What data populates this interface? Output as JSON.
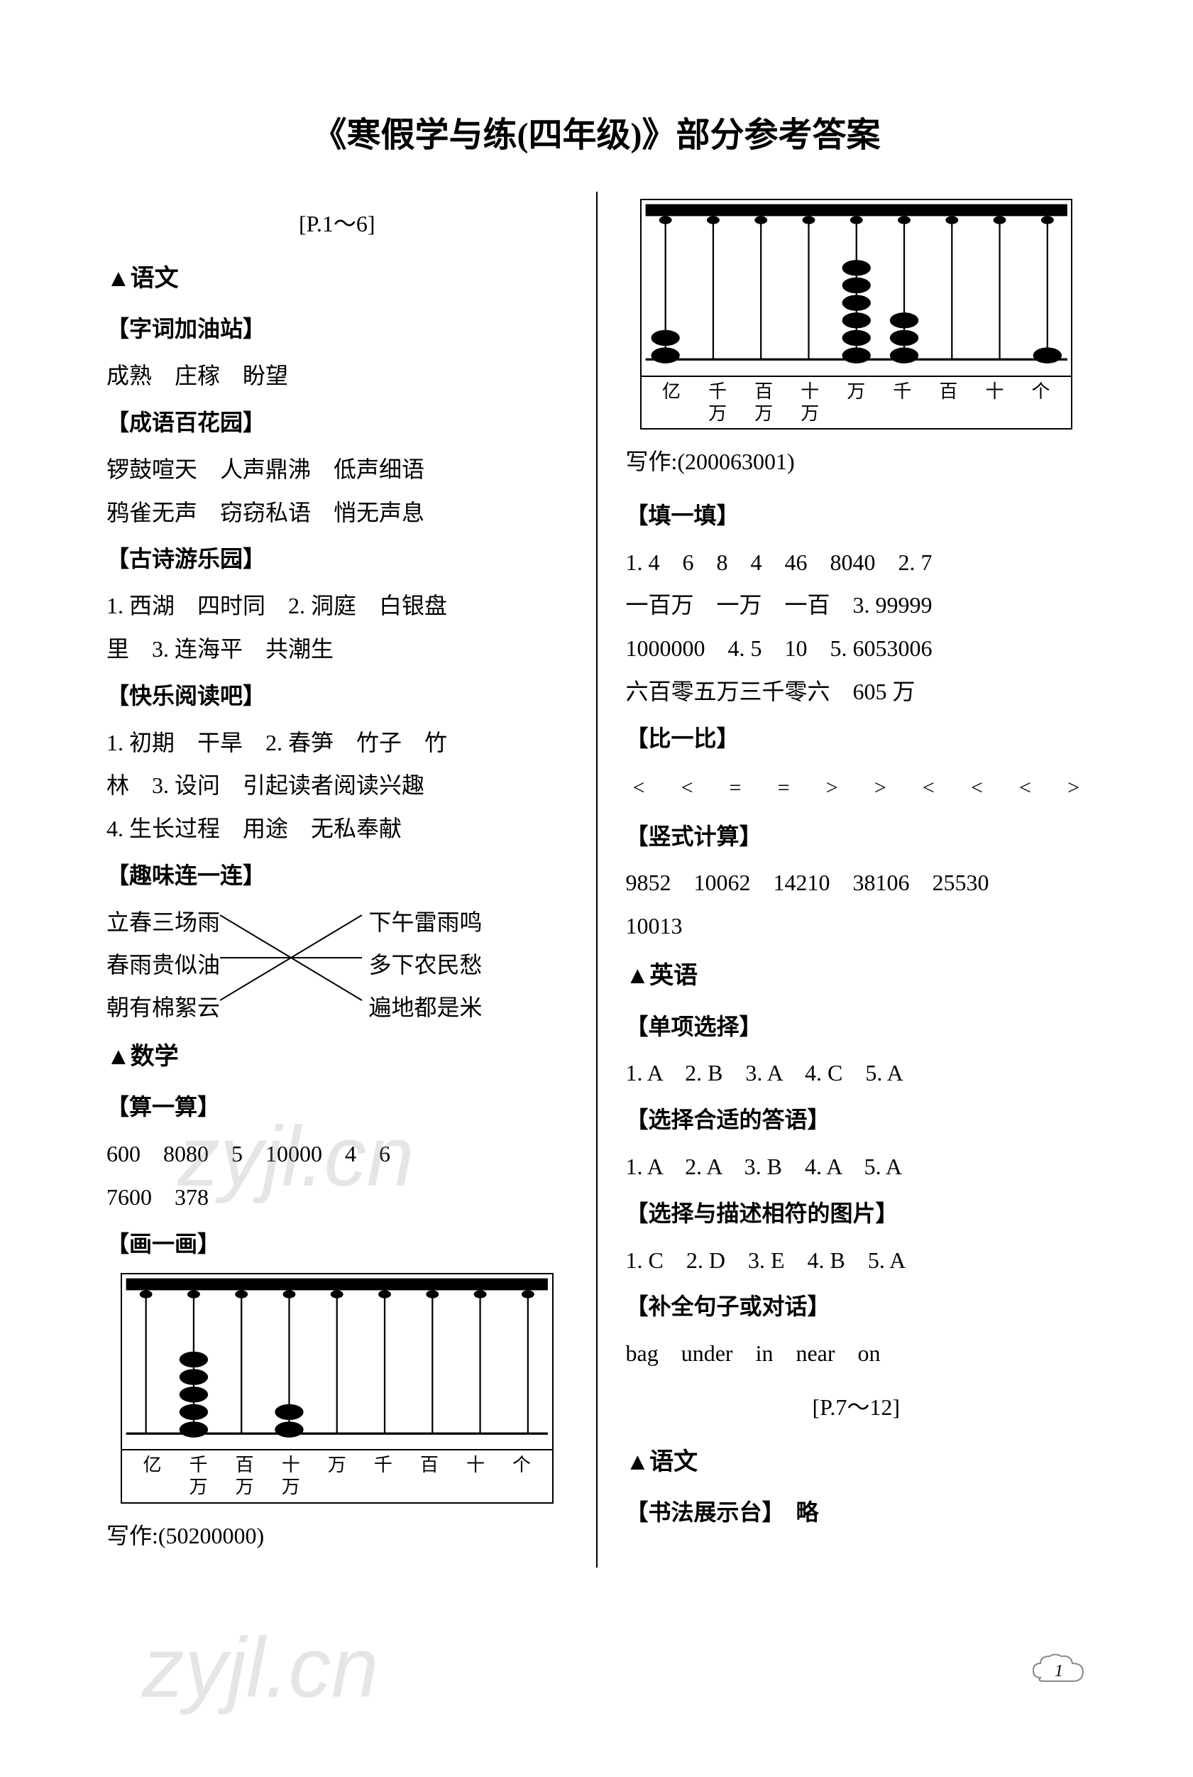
{
  "title": "《寒假学与练(四年级)》部分参考答案",
  "page_range1": "[P.1～6]",
  "page_range2": "[P.7～12]",
  "subject_chinese": "▲语文",
  "subject_math": "▲数学",
  "subject_english": "▲英语",
  "left": {
    "sec1_header": "【字词加油站】",
    "sec1_text": "成熟　庄稼　盼望",
    "sec2_header": "【成语百花园】",
    "sec2_text1": "锣鼓喧天　人声鼎沸　低声细语",
    "sec2_text2": "鸦雀无声　窃窃私语　悄无声息",
    "sec3_header": "【古诗游乐园】",
    "sec3_text1": "1. 西湖　四时同　2. 洞庭　白银盘",
    "sec3_text2": "里　3. 连海平　共潮生",
    "sec4_header": "【快乐阅读吧】",
    "sec4_text1": "1. 初期　干旱　2. 春笋　竹子　竹",
    "sec4_text2": "林　3. 设问　引起读者阅读兴趣",
    "sec4_text3": "4. 生长过程　用途　无私奉献",
    "sec5_header": "【趣味连一连】",
    "connect_l1": "立春三场雨",
    "connect_l2": "春雨贵似油",
    "connect_l3": "朝有棉絮云",
    "connect_r1": "下午雷雨鸣",
    "connect_r2": "多下农民愁",
    "connect_r3": "遍地都是米",
    "sec6_header": "【算一算】",
    "sec6_text1": "600　8080　5　10000　4　6",
    "sec6_text2": "7600　378",
    "sec7_header": "【画一画】",
    "write1": "写作:(50200000)"
  },
  "right": {
    "write2": "写作:(200063001)",
    "sec1_header": "【填一填】",
    "sec1_text1": "1. 4　6　8　4　46　8040　2. 7",
    "sec1_text2": "一百万　一万　一百　3. 99999",
    "sec1_text3": "1000000　4. 5　10　5. 6053006",
    "sec1_text4": "六百零五万三千零六　605 万",
    "sec2_header": "【比一比】",
    "sec2_compare": [
      "<",
      "<",
      "=",
      "=",
      ">",
      ">",
      "<",
      "<",
      "<",
      ">"
    ],
    "sec3_header": "【竖式计算】",
    "sec3_text1": "9852　10062　14210　38106　25530",
    "sec3_text2": "10013",
    "sec4_header": "【单项选择】",
    "sec4_text": "1. A　2. B　3. A　4. C　5. A",
    "sec5_header": "【选择合适的答语】",
    "sec5_text": "1. A　2. A　3. B　4. A　5. A",
    "sec6_header": "【选择与描述相符的图片】",
    "sec6_text": "1. C　2. D　3. E　4. B　5. A",
    "sec7_header": "【补全句子或对话】",
    "sec7_text": "bag　under　in　near　on",
    "sec8_header": "【书法展示台】　略"
  },
  "abacus": {
    "labels": [
      "亿",
      "千万",
      "百万",
      "十万",
      "万",
      "千",
      "百",
      "十",
      "个"
    ],
    "abacus1_beads": [
      0,
      5,
      0,
      2,
      0,
      0,
      0,
      0,
      0
    ],
    "abacus2_beads": [
      2,
      0,
      0,
      0,
      6,
      3,
      0,
      0,
      1
    ]
  },
  "watermark_text": "zyjl.cn",
  "page_number": "1",
  "colors": {
    "text": "#000000",
    "bg": "#ffffff",
    "watermark": "rgba(150,150,150,0.25)"
  }
}
